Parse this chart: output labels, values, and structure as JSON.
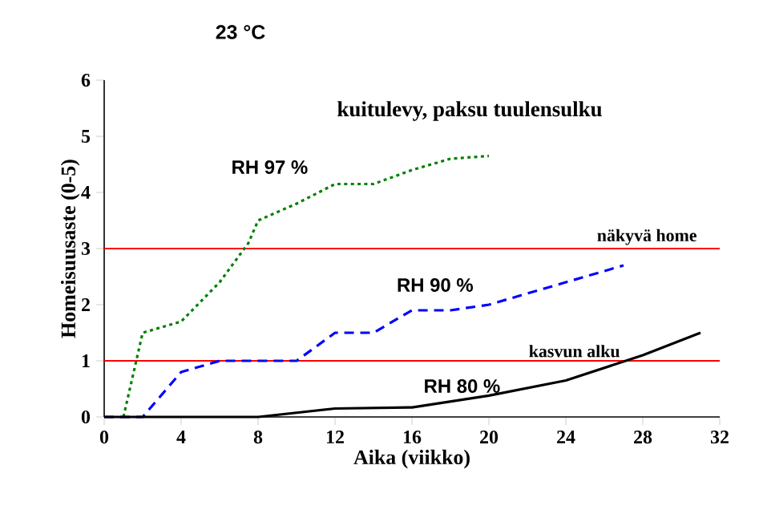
{
  "chart_data": {
    "type": "line",
    "title": "23 °C",
    "subtitle": "kuitulevy, paksu tuulensulku",
    "xlabel": "Aika (viikko)",
    "ylabel": "Homeisuusaste (0-5)",
    "xlim": [
      0,
      32
    ],
    "ylim": [
      0,
      6
    ],
    "xticks": [
      0,
      4,
      8,
      12,
      16,
      20,
      24,
      28,
      32
    ],
    "yticks": [
      0,
      1,
      2,
      3,
      4,
      5,
      6
    ],
    "grid": false,
    "marker": "none",
    "series": [
      {
        "name": "RH 97 %",
        "color": "#008000",
        "line_style": "dotted",
        "x": [
          1,
          2,
          4,
          6,
          7.5,
          8,
          10,
          12,
          14,
          16,
          18,
          20
        ],
        "values": [
          0,
          1.5,
          1.7,
          2.4,
          3.1,
          3.5,
          3.8,
          4.15,
          4.15,
          4.4,
          4.6,
          4.65
        ]
      },
      {
        "name": "RH 90 %",
        "color": "#0000ff",
        "line_style": "dashed",
        "x": [
          0,
          2,
          4,
          6,
          10,
          12,
          14,
          16,
          18,
          20,
          24,
          27
        ],
        "values": [
          0,
          0,
          0.8,
          1.0,
          1.0,
          1.5,
          1.5,
          1.9,
          1.9,
          2.0,
          2.4,
          2.7
        ]
      },
      {
        "name": "RH 80 %",
        "color": "#000000",
        "line_style": "solid",
        "x": [
          0,
          8,
          12,
          16,
          20,
          24,
          28,
          31
        ],
        "values": [
          0,
          0,
          0.15,
          0.17,
          0.38,
          0.65,
          1.1,
          1.5
        ]
      }
    ],
    "ref_lines": [
      {
        "axis": "y",
        "value": 3,
        "label": "näkyvä home",
        "color": "#ff0000"
      },
      {
        "axis": "y",
        "value": 1,
        "label": "kasvun alku",
        "color": "#ff0000"
      }
    ]
  }
}
